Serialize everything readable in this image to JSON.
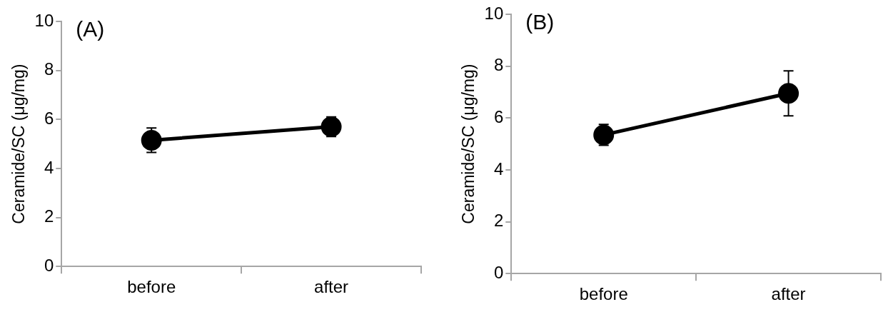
{
  "chart_data": [
    {
      "type": "line",
      "title": "(A)",
      "ylabel": "Ceramide/SC (μg/mg)",
      "categories": [
        "before",
        "after"
      ],
      "ylim": [
        0,
        10
      ],
      "yticks": [
        0,
        2,
        4,
        6,
        8,
        10
      ],
      "grid": false,
      "legend": false,
      "marker": "circle",
      "line_style": "solid",
      "series": [
        {
          "color": "#000000",
          "values": [
            5.15,
            5.7
          ],
          "errors": [
            0.5,
            0.4
          ]
        }
      ]
    },
    {
      "type": "line",
      "title": "(B)",
      "ylabel": "Ceramide/SC (μg/mg)",
      "categories": [
        "before",
        "after"
      ],
      "ylim": [
        0,
        10
      ],
      "yticks": [
        0,
        2,
        4,
        6,
        8,
        10
      ],
      "grid": false,
      "legend": false,
      "marker": "circle",
      "line_style": "solid",
      "series": [
        {
          "color": "#000000",
          "values": [
            5.35,
            6.95
          ],
          "errors": [
            0.4,
            0.87
          ]
        }
      ]
    }
  ]
}
